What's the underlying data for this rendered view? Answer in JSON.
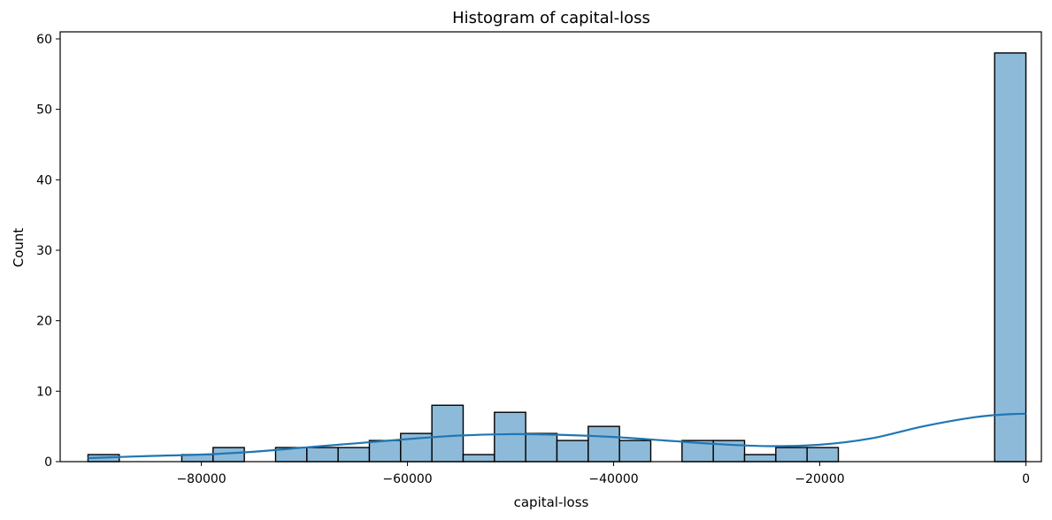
{
  "chart_data": {
    "type": "bar",
    "title": "Histogram of capital-loss",
    "xlabel": "capital-loss",
    "ylabel": "Count",
    "xlim": [
      -93700,
      1500
    ],
    "ylim": [
      0,
      61
    ],
    "bin_edges": [
      -91000,
      -87966.7,
      -84933.3,
      -81900,
      -78866.7,
      -75833.3,
      -72800,
      -69766.7,
      -66733.3,
      -63700,
      -60666.7,
      -57633.3,
      -54600,
      -51566.7,
      -48533.3,
      -45500,
      -42466.7,
      -39433.3,
      -36400,
      -33366.7,
      -30333.3,
      -27300,
      -24266.7,
      -21233.3,
      -18200,
      -15166.7,
      -12133.3,
      -9100,
      -6066.7,
      -3033.3,
      0
    ],
    "counts": [
      1,
      0,
      0,
      1,
      2,
      0,
      2,
      2,
      2,
      3,
      4,
      8,
      1,
      7,
      4,
      3,
      5,
      3,
      0,
      3,
      3,
      1,
      2,
      2,
      0,
      0,
      0,
      0,
      0,
      58
    ],
    "kde": {
      "x": [
        -91000,
        -85000,
        -80000,
        -75000,
        -70000,
        -65000,
        -60000,
        -55000,
        -50000,
        -45000,
        -40000,
        -35000,
        -30000,
        -25000,
        -20000,
        -15000,
        -10000,
        -5000,
        -2000,
        0
      ],
      "y": [
        0.5,
        0.8,
        1.0,
        1.4,
        2.0,
        2.6,
        3.2,
        3.7,
        3.9,
        3.8,
        3.5,
        3.0,
        2.5,
        2.2,
        2.4,
        3.3,
        5.0,
        6.3,
        6.7,
        6.8
      ]
    },
    "xticks": [
      -80000,
      -60000,
      -40000,
      -20000,
      0
    ],
    "xtick_labels": [
      "−80000",
      "−60000",
      "−40000",
      "−20000",
      "0"
    ],
    "yticks": [
      0,
      10,
      20,
      30,
      40,
      50,
      60
    ],
    "ytick_labels": [
      "0",
      "10",
      "20",
      "30",
      "40",
      "50",
      "60"
    ],
    "grid": false,
    "colors": {
      "bar_fill": "#8ebad9",
      "bar_edge": "#000000",
      "kde_line": "#1f77b4"
    }
  }
}
